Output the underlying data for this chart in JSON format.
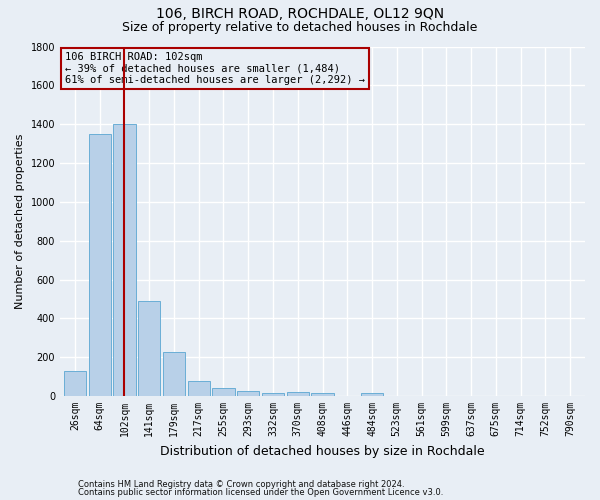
{
  "title": "106, BIRCH ROAD, ROCHDALE, OL12 9QN",
  "subtitle": "Size of property relative to detached houses in Rochdale",
  "xlabel": "Distribution of detached houses by size in Rochdale",
  "ylabel": "Number of detached properties",
  "categories": [
    "26sqm",
    "64sqm",
    "102sqm",
    "141sqm",
    "179sqm",
    "217sqm",
    "255sqm",
    "293sqm",
    "332sqm",
    "370sqm",
    "408sqm",
    "446sqm",
    "484sqm",
    "523sqm",
    "561sqm",
    "599sqm",
    "637sqm",
    "675sqm",
    "714sqm",
    "752sqm",
    "790sqm"
  ],
  "values": [
    130,
    1350,
    1400,
    490,
    225,
    75,
    40,
    25,
    15,
    20,
    15,
    0,
    15,
    0,
    0,
    0,
    0,
    0,
    0,
    0,
    0
  ],
  "bar_color": "#b8d0e8",
  "bar_edge_color": "#6aaed6",
  "highlight_index": 2,
  "highlight_color": "#aa0000",
  "ylim": [
    0,
    1800
  ],
  "yticks": [
    0,
    200,
    400,
    600,
    800,
    1000,
    1200,
    1400,
    1600,
    1800
  ],
  "annotation_title": "106 BIRCH ROAD: 102sqm",
  "annotation_line1": "← 39% of detached houses are smaller (1,484)",
  "annotation_line2": "61% of semi-detached houses are larger (2,292) →",
  "annotation_box_color": "#aa0000",
  "footer1": "Contains HM Land Registry data © Crown copyright and database right 2024.",
  "footer2": "Contains public sector information licensed under the Open Government Licence v3.0.",
  "bg_color": "#e8eef5",
  "grid_color": "#ffffff",
  "title_fontsize": 10,
  "subtitle_fontsize": 9,
  "ylabel_fontsize": 8,
  "xlabel_fontsize": 9,
  "tick_fontsize": 7,
  "footer_fontsize": 6,
  "ann_fontsize": 7.5
}
